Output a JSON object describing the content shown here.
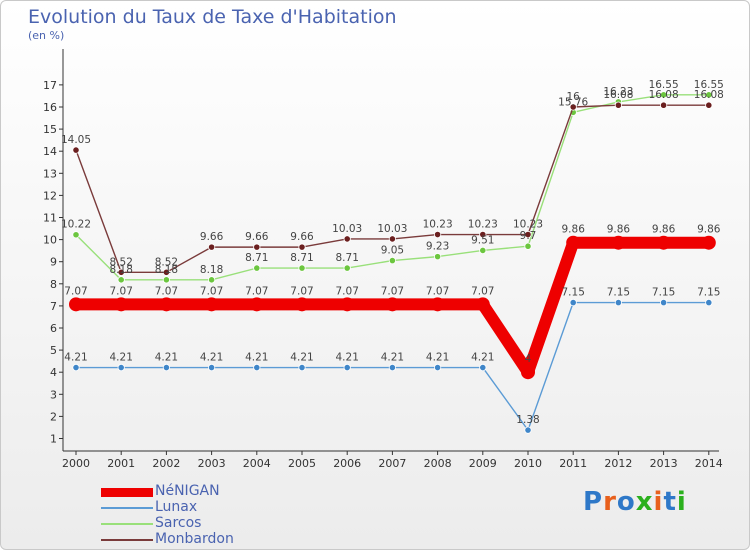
{
  "chart_title": "Evolution du Taux de Taxe d'Habitation",
  "chart_subtitle": "(en %)",
  "logo_text": "Proxiti",
  "logo_colors": [
    "#2e78c8",
    "#e8601c",
    "#2e78c8",
    "#2bb01d",
    "#e8601c",
    "#2e78c8",
    "#2bb01d"
  ],
  "chart_data": {
    "type": "line",
    "title": "Evolution du Taux de Taxe d'Habitation",
    "ylabel": "(en %)",
    "xlabel": "",
    "x": [
      "2000",
      "2001",
      "2002",
      "2003",
      "2004",
      "2005",
      "2006",
      "2007",
      "2008",
      "2009",
      "2010",
      "2011",
      "2012",
      "2013",
      "2014"
    ],
    "ylim": [
      0.5,
      17.5
    ],
    "yticks": [
      1,
      2,
      3,
      4,
      5,
      6,
      7,
      8,
      9,
      10,
      11,
      12,
      13,
      14,
      15,
      16,
      17
    ],
    "grid": "none",
    "legend_position": "bottom-left",
    "series": [
      {
        "name": "NéNIGAN",
        "color": "#ee0000",
        "style": "thick",
        "values": [
          7.07,
          7.07,
          7.07,
          7.07,
          7.07,
          7.07,
          7.07,
          7.07,
          7.07,
          7.07,
          4.0,
          9.86,
          9.86,
          9.86,
          9.86
        ],
        "labels": [
          "7.07",
          "7.07",
          "7.07",
          "7.07",
          "7.07",
          "7.07",
          "7.07",
          "7.07",
          "7.07",
          "7.07",
          "4",
          "9.86",
          "9.86",
          "9.86",
          "9.86"
        ]
      },
      {
        "name": "Lunax",
        "color": "#5b9bd5",
        "marker_color": "#3f86c9",
        "style": "thin",
        "values": [
          4.21,
          4.21,
          4.21,
          4.21,
          4.21,
          4.21,
          4.21,
          4.21,
          4.21,
          4.21,
          1.38,
          7.15,
          7.15,
          7.15,
          7.15
        ],
        "labels": [
          "4.21",
          "4.21",
          "4.21",
          "4.21",
          "4.21",
          "4.21",
          "4.21",
          "4.21",
          "4.21",
          "4.21",
          "1.38",
          "7.15",
          "7.15",
          "7.15",
          "7.15"
        ]
      },
      {
        "name": "Sarcos",
        "color": "#99e07a",
        "marker_color": "#6cc63f",
        "style": "thin",
        "values": [
          10.22,
          8.18,
          8.18,
          8.18,
          8.71,
          8.71,
          8.71,
          9.05,
          9.23,
          9.51,
          9.7,
          15.76,
          16.23,
          16.55,
          16.55
        ],
        "labels": [
          "10.22",
          "8.18",
          "8.18",
          "8.18",
          "8.71",
          "8.71",
          "8.71",
          "9.05",
          "9.23",
          "9.51",
          "9.7",
          "15.76",
          "16.23",
          "16.55",
          "16.55"
        ]
      },
      {
        "name": "Monbardon",
        "color": "#7a3b3b",
        "marker_color": "#6b1f1f",
        "style": "thin",
        "values": [
          14.05,
          8.52,
          8.52,
          9.66,
          9.66,
          9.66,
          10.03,
          10.03,
          10.23,
          10.23,
          10.23,
          16.0,
          16.08,
          16.08,
          16.08
        ],
        "labels": [
          "14.05",
          "8.52",
          "8.52",
          "9.66",
          "9.66",
          "9.66",
          "10.03",
          "10.03",
          "10.23",
          "10.23",
          "10.23",
          "16",
          "16.08",
          "16.08",
          "16.08"
        ]
      }
    ]
  }
}
